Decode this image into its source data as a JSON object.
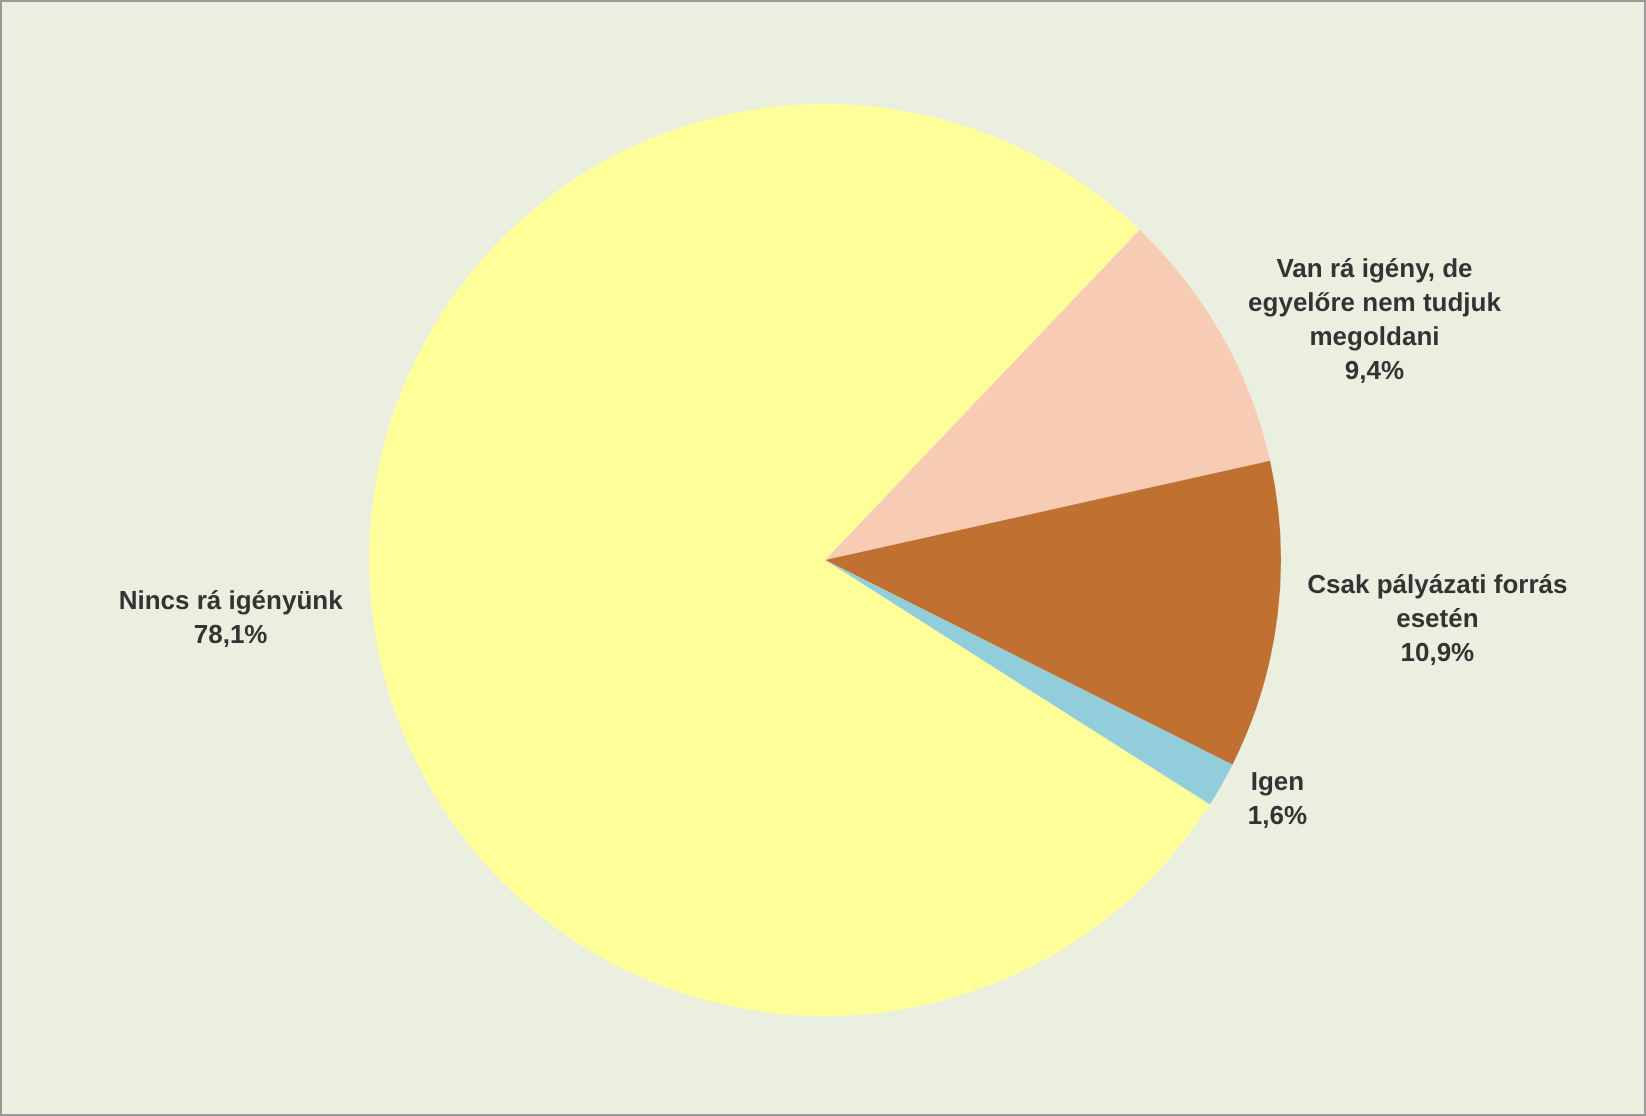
{
  "chart_data": {
    "type": "pie",
    "categories": [
      "Van rá igény, de egyelőre nem tudjuk megoldani",
      "Csak pályázati forrás esetén",
      "Igen",
      "Nincs rá igényünk"
    ],
    "values": [
      9.4,
      10.9,
      1.6,
      78.1
    ],
    "colors": [
      "#f8cbb4",
      "#c07132",
      "#92cddc",
      "#ffff99"
    ],
    "value_labels": [
      "9,4%",
      "10,9%",
      "1,6%",
      "78,1%"
    ],
    "legend": false
  }
}
